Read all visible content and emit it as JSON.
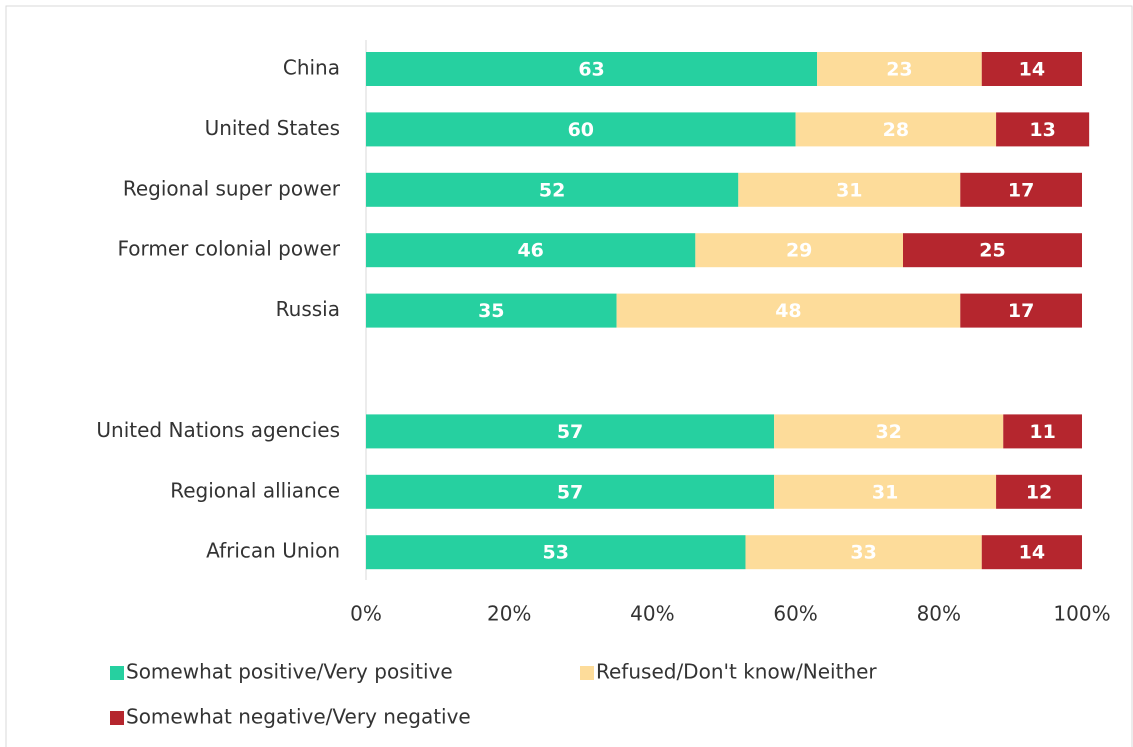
{
  "chart_data": {
    "type": "stacked-bar-horizontal",
    "categories": [
      "China",
      "United States",
      "Regional super power",
      "Former colonial power",
      "Russia",
      null,
      "United Nations agencies",
      "Regional alliance",
      "African Union"
    ],
    "series": [
      {
        "name": "Somewhat positive/Very positive",
        "color": "#26d0a0",
        "values": [
          63,
          60,
          52,
          46,
          35,
          null,
          57,
          57,
          53
        ]
      },
      {
        "name": "Refused/Don't know/Neither",
        "color": "#fddc9a",
        "values": [
          23,
          28,
          31,
          29,
          48,
          null,
          32,
          31,
          33
        ]
      },
      {
        "name": "Somewhat negative/Very negative",
        "color": "#b5262e",
        "values": [
          14,
          13,
          17,
          25,
          17,
          null,
          11,
          12,
          14
        ]
      }
    ],
    "xlim": [
      0,
      100
    ],
    "xticks": [
      {
        "value": 0,
        "label": "0%"
      },
      {
        "value": 20,
        "label": "20%"
      },
      {
        "value": 40,
        "label": "40%"
      },
      {
        "value": 60,
        "label": "60%"
      },
      {
        "value": 80,
        "label": "80%"
      },
      {
        "value": 100,
        "label": "100%"
      }
    ],
    "legend": "bottom"
  }
}
